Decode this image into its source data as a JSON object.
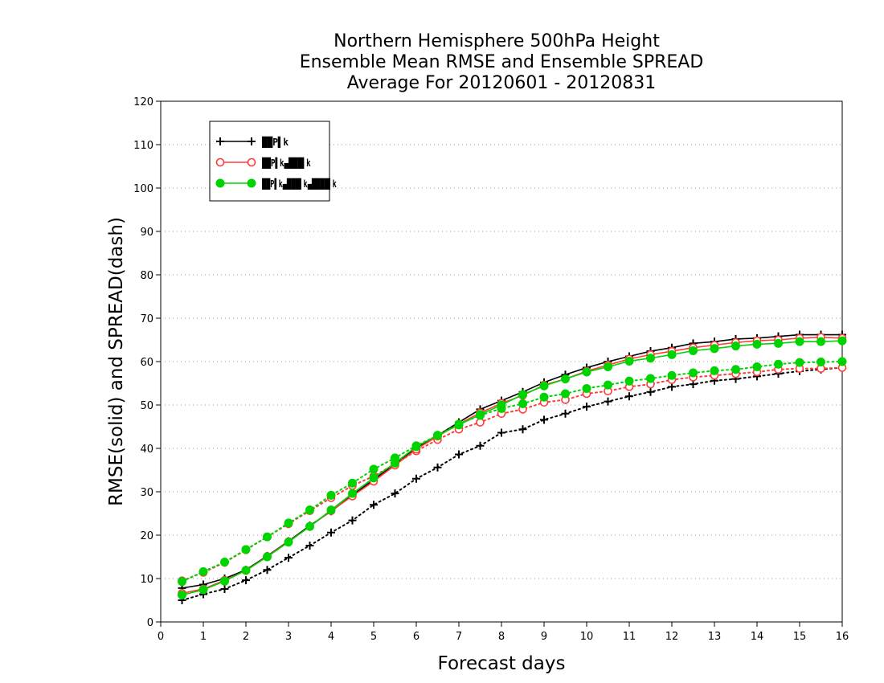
{
  "chart_data": {
    "type": "line",
    "title": [
      "Northern Hemisphere 500hPa Height",
      "Ensemble Mean RMSE and Ensemble SPREAD",
      "Average For 20120601 - 20120831"
    ],
    "xlabel": "Forecast days",
    "ylabel": "RMSE(solid) and SPREAD(dash)",
    "xlim": [
      0,
      16
    ],
    "ylim": [
      0,
      120
    ],
    "xticks": [
      "0",
      "1",
      "2",
      "3",
      "4",
      "5",
      "6",
      "7",
      "8",
      "9",
      "10",
      "11",
      "12",
      "13",
      "14",
      "15",
      "16"
    ],
    "yticks": [
      "0",
      "10",
      "20",
      "30",
      "40",
      "50",
      "60",
      "70",
      "80",
      "90",
      "100",
      "110",
      "120"
    ],
    "grid": "horizontal dotted",
    "legend_position": "top-left",
    "x": [
      0.5,
      1,
      1.5,
      2,
      2.5,
      3,
      3.5,
      4,
      4.5,
      5,
      5.5,
      6,
      6.5,
      7,
      7.5,
      8,
      8.5,
      9,
      9.5,
      10,
      10.5,
      11,
      11.5,
      12,
      12.5,
      13,
      13.5,
      14,
      14.5,
      15,
      15.5,
      16
    ],
    "series": [
      {
        "legend_label": "██P▌k",
        "color": "#000000",
        "marker": "plus",
        "rmse": [
          7.8,
          8.6,
          10,
          12,
          15.2,
          18.6,
          22.2,
          25.5,
          29.2,
          32.8,
          36.4,
          40,
          43,
          46,
          49,
          51,
          53,
          55.2,
          57,
          58.6,
          60,
          61.2,
          62.4,
          63.2,
          64.2,
          64.6,
          65.2,
          65.4,
          65.8,
          66.2,
          66.2,
          66.2
        ],
        "spread": [
          5,
          6.4,
          7.6,
          9.6,
          12,
          14.8,
          17.6,
          20.6,
          23.4,
          27,
          29.6,
          33,
          35.6,
          38.6,
          40.6,
          43.6,
          44.4,
          46.6,
          48,
          49.6,
          50.8,
          52,
          53,
          54.2,
          54.8,
          55.6,
          56,
          56.6,
          57.2,
          57.8,
          58.2,
          58.6
        ]
      },
      {
        "legend_label": "██P▌k▄███▌k",
        "color": "#ff3b3b",
        "marker": "open-circle",
        "rmse": [
          6.6,
          7.6,
          9.6,
          11.8,
          15.1,
          18.5,
          22,
          25.6,
          29,
          32.4,
          36.1,
          39.8,
          42.8,
          45.6,
          48.2,
          50.4,
          52.2,
          54.6,
          56,
          57.8,
          59.2,
          60.6,
          61.6,
          62.4,
          63.2,
          63.8,
          64.4,
          64.8,
          65,
          65.4,
          65.6,
          65.4
        ],
        "spread": [
          9.5,
          11.4,
          13.7,
          16.6,
          19.6,
          22.6,
          25.6,
          28.6,
          31.4,
          33.6,
          36.4,
          39.4,
          42,
          44.4,
          46,
          48,
          49,
          50.6,
          51.2,
          52.6,
          53.2,
          54.2,
          54.8,
          55.8,
          56.4,
          56.8,
          57.2,
          57.6,
          58.2,
          58.4,
          58.4,
          58.6
        ]
      },
      {
        "legend_label": "██P▌k▄███▌k▄████▌k",
        "color": "#00d400",
        "marker": "filled-circle",
        "rmse": [
          6.2,
          7.4,
          9.4,
          11.9,
          15,
          18.4,
          22,
          25.8,
          29.6,
          33.2,
          36.6,
          40.4,
          43,
          45.4,
          47.8,
          50,
          52.4,
          54.4,
          56,
          57.6,
          58.8,
          60.1,
          60.8,
          61.6,
          62.5,
          63,
          63.6,
          64,
          64.2,
          64.6,
          64.6,
          64.8
        ],
        "spread": [
          9.3,
          11.6,
          13.8,
          16.7,
          19.6,
          22.8,
          25.8,
          29.2,
          32,
          35.2,
          37.8,
          40.6,
          43,
          45.6,
          47.6,
          49.2,
          50.3,
          51.8,
          52.6,
          53.8,
          54.6,
          55.5,
          56.1,
          56.8,
          57.4,
          57.9,
          58.2,
          58.8,
          59.4,
          59.8,
          59.9,
          60
        ]
      }
    ]
  }
}
